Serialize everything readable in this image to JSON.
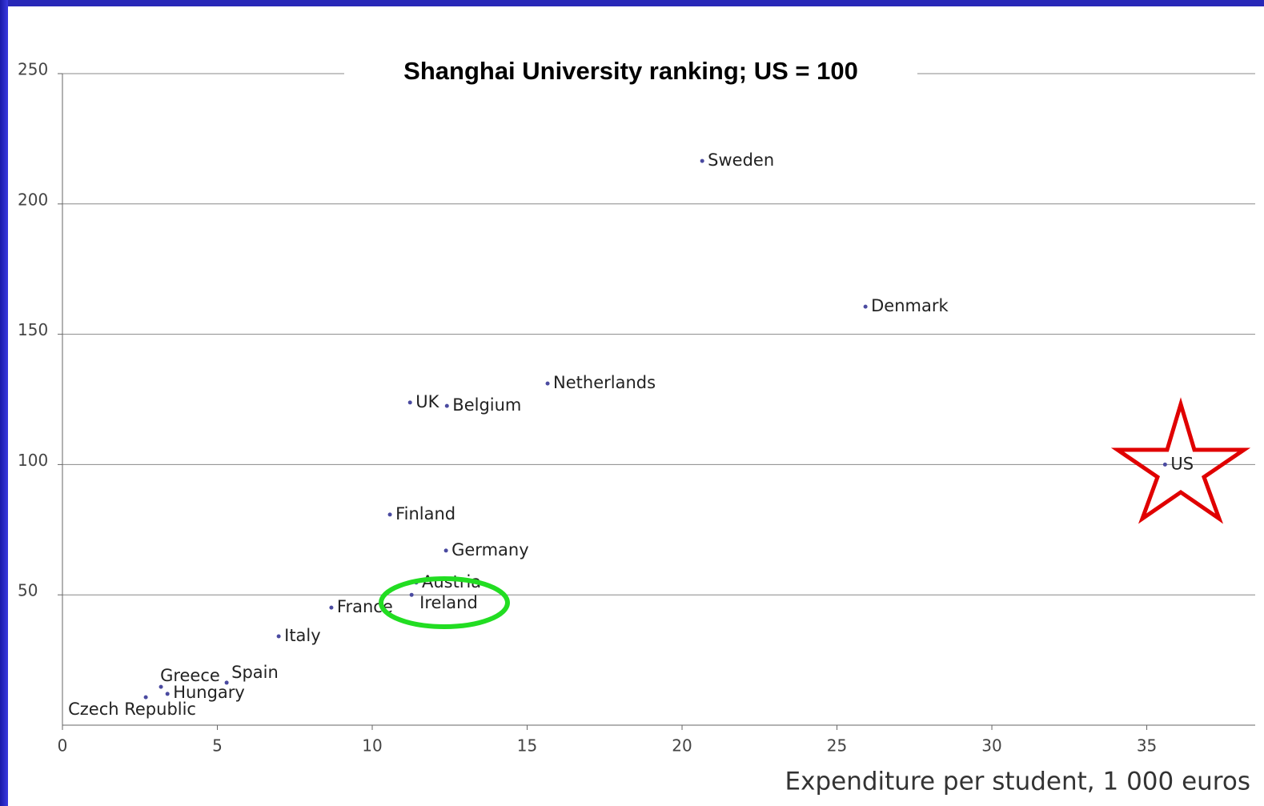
{
  "chart_data": {
    "type": "scatter",
    "title": "Shanghai University ranking; US = 100",
    "xlabel": "Expenditure per student, 1 000 euros",
    "labels": [
      "Sweden",
      "Denmark",
      "Netherlands",
      "UK",
      "Belgium",
      "US",
      "Finland",
      "Germany",
      "Austria",
      "Ireland",
      "France",
      "Italy",
      "Spain",
      "Greece",
      "Hungary",
      "Czech Republic"
    ],
    "x": [
      20.65,
      25.92,
      15.66,
      11.22,
      12.41,
      35.59,
      10.57,
      12.38,
      11.42,
      11.27,
      8.68,
      6.98,
      5.3,
      3.18,
      3.39,
      2.69
    ],
    "y": [
      216.5,
      160.6,
      131.1,
      123.8,
      122.5,
      100,
      80.8,
      67,
      54.7,
      50,
      45.1,
      34.1,
      16.3,
      14.7,
      12,
      10.7
    ],
    "color": "#4a4aa0",
    "xlim": [
      0,
      38.5
    ],
    "ylim": [
      0,
      250
    ],
    "xticks": [
      0,
      5,
      10,
      15,
      20,
      25,
      30,
      35
    ],
    "yticks": [
      50,
      100,
      150,
      200,
      250
    ],
    "grid": true
  }
}
